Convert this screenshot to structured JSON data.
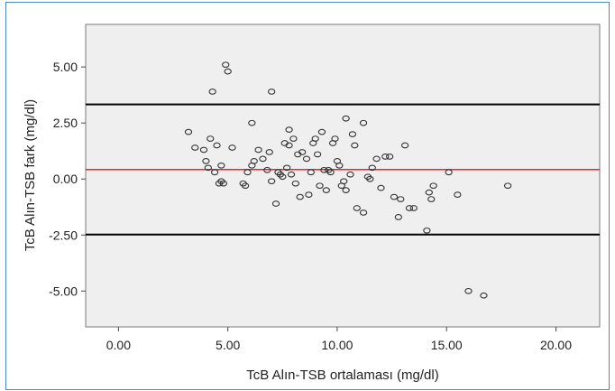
{
  "chart_data": {
    "type": "scatter",
    "title": "",
    "xlabel": "TcB Alın-TSB ortalaması (mg/dl)",
    "ylabel": "TcB Alın-TSB fark (mg/dl)",
    "xlim": [
      -1.5,
      22.0
    ],
    "ylim": [
      -6.6,
      6.9
    ],
    "xticks": [
      0,
      5,
      10,
      15,
      20
    ],
    "xtick_labels": [
      "0.00",
      "5.00",
      "10.00",
      "15.00",
      "20.00"
    ],
    "yticks": [
      5,
      2.5,
      0,
      -2.5,
      -5
    ],
    "ytick_labels": [
      "5.00",
      "2.50",
      "0.00",
      "-2.50",
      "-5.00"
    ],
    "grid": false,
    "reference_lines": [
      {
        "y": 3.33,
        "color": "#000000"
      },
      {
        "y": 0.42,
        "color": "#e8262b"
      },
      {
        "y": -2.48,
        "color": "#000000"
      }
    ],
    "points": [
      {
        "x": 4.9,
        "y": 5.1
      },
      {
        "x": 5.0,
        "y": 4.8
      },
      {
        "x": 4.3,
        "y": 3.9
      },
      {
        "x": 7.0,
        "y": 3.9
      },
      {
        "x": 3.2,
        "y": 2.1
      },
      {
        "x": 6.1,
        "y": 2.5
      },
      {
        "x": 7.8,
        "y": 2.2
      },
      {
        "x": 10.4,
        "y": 2.7
      },
      {
        "x": 11.2,
        "y": 2.5
      },
      {
        "x": 3.5,
        "y": 1.4
      },
      {
        "x": 3.9,
        "y": 1.3
      },
      {
        "x": 4.2,
        "y": 1.8
      },
      {
        "x": 4.5,
        "y": 1.5
      },
      {
        "x": 4.0,
        "y": 0.8
      },
      {
        "x": 4.1,
        "y": 0.5
      },
      {
        "x": 4.4,
        "y": 0.3
      },
      {
        "x": 4.7,
        "y": 0.6
      },
      {
        "x": 4.6,
        "y": -0.2
      },
      {
        "x": 4.8,
        "y": -0.2
      },
      {
        "x": 4.7,
        "y": -0.1
      },
      {
        "x": 5.2,
        "y": 1.4
      },
      {
        "x": 5.7,
        "y": -0.2
      },
      {
        "x": 5.8,
        "y": -0.3
      },
      {
        "x": 5.9,
        "y": 0.3
      },
      {
        "x": 6.1,
        "y": 0.6
      },
      {
        "x": 6.2,
        "y": 0.8
      },
      {
        "x": 6.4,
        "y": 1.3
      },
      {
        "x": 6.6,
        "y": 0.9
      },
      {
        "x": 6.8,
        "y": 0.4
      },
      {
        "x": 6.9,
        "y": 1.2
      },
      {
        "x": 7.0,
        "y": -0.1
      },
      {
        "x": 7.2,
        "y": -1.1
      },
      {
        "x": 7.3,
        "y": 0.3
      },
      {
        "x": 7.4,
        "y": 0.2
      },
      {
        "x": 7.5,
        "y": 0.1
      },
      {
        "x": 7.6,
        "y": 1.6
      },
      {
        "x": 7.7,
        "y": 0.5
      },
      {
        "x": 7.8,
        "y": 1.5
      },
      {
        "x": 7.9,
        "y": 0.2
      },
      {
        "x": 8.0,
        "y": 1.8
      },
      {
        "x": 8.1,
        "y": -0.2
      },
      {
        "x": 8.2,
        "y": 1.1
      },
      {
        "x": 8.3,
        "y": -0.8
      },
      {
        "x": 8.4,
        "y": 1.2
      },
      {
        "x": 8.6,
        "y": 0.9
      },
      {
        "x": 8.7,
        "y": -0.7
      },
      {
        "x": 8.8,
        "y": 0.3
      },
      {
        "x": 8.9,
        "y": 1.6
      },
      {
        "x": 9.0,
        "y": 1.8
      },
      {
        "x": 9.1,
        "y": 1.1
      },
      {
        "x": 9.2,
        "y": -0.3
      },
      {
        "x": 9.3,
        "y": 2.1
      },
      {
        "x": 9.4,
        "y": 0.4
      },
      {
        "x": 9.5,
        "y": -0.5
      },
      {
        "x": 9.6,
        "y": 0.4
      },
      {
        "x": 9.7,
        "y": 0.3
      },
      {
        "x": 9.8,
        "y": 1.6
      },
      {
        "x": 9.9,
        "y": 1.8
      },
      {
        "x": 10.0,
        "y": 0.8
      },
      {
        "x": 10.1,
        "y": 0.6
      },
      {
        "x": 10.2,
        "y": -0.3
      },
      {
        "x": 10.3,
        "y": -0.1
      },
      {
        "x": 10.4,
        "y": -0.5
      },
      {
        "x": 10.6,
        "y": 0.2
      },
      {
        "x": 10.7,
        "y": 2.0
      },
      {
        "x": 10.8,
        "y": 1.5
      },
      {
        "x": 10.9,
        "y": -1.3
      },
      {
        "x": 11.2,
        "y": -1.5
      },
      {
        "x": 11.4,
        "y": 0.1
      },
      {
        "x": 11.5,
        "y": 0.0
      },
      {
        "x": 11.6,
        "y": 0.5
      },
      {
        "x": 11.8,
        "y": 0.9
      },
      {
        "x": 12.0,
        "y": -0.4
      },
      {
        "x": 12.2,
        "y": 1.0
      },
      {
        "x": 12.4,
        "y": 1.0
      },
      {
        "x": 12.6,
        "y": -0.8
      },
      {
        "x": 12.8,
        "y": -1.7
      },
      {
        "x": 12.9,
        "y": -0.9
      },
      {
        "x": 13.1,
        "y": 1.5
      },
      {
        "x": 13.3,
        "y": -1.3
      },
      {
        "x": 13.5,
        "y": -1.3
      },
      {
        "x": 14.1,
        "y": -2.3
      },
      {
        "x": 14.2,
        "y": -0.6
      },
      {
        "x": 14.3,
        "y": -0.9
      },
      {
        "x": 14.4,
        "y": -0.3
      },
      {
        "x": 15.1,
        "y": 0.3
      },
      {
        "x": 15.5,
        "y": -0.7
      },
      {
        "x": 16.0,
        "y": -5.0
      },
      {
        "x": 16.7,
        "y": -5.2
      },
      {
        "x": 17.8,
        "y": -0.3
      }
    ],
    "colors": {
      "plot_background": "#efefef",
      "frame_border": "#4f86c6",
      "marker": "#333333",
      "mean_line": "#e8262b",
      "limit_lines": "#000000"
    }
  }
}
